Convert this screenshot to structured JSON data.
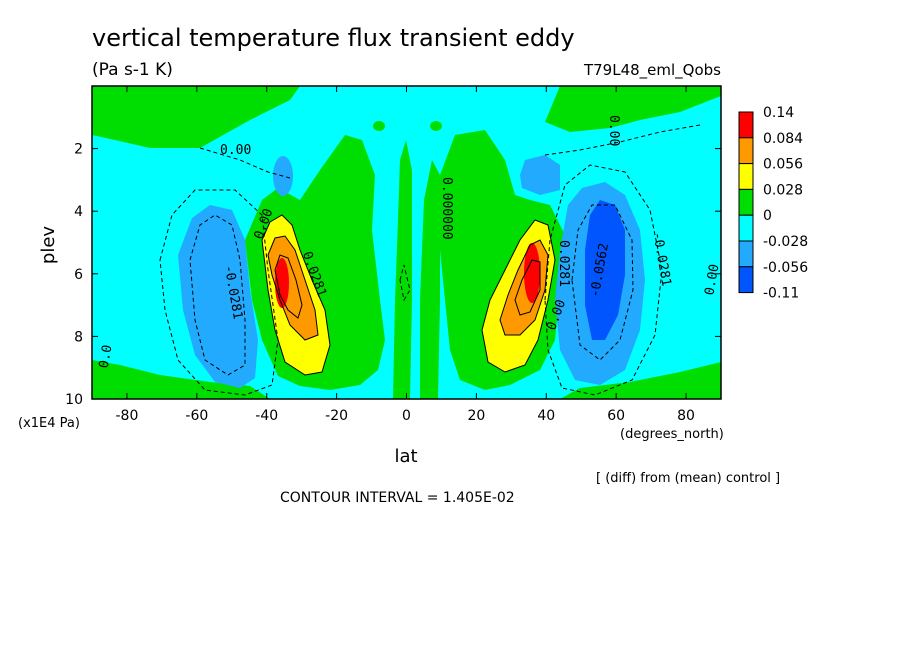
{
  "chart_data": {
    "type": "heatmap",
    "title": "vertical temperature flux transient eddy",
    "units": "(Pa s-1 K)",
    "run_label": "T79L48_eml_Qobs",
    "xlabel": "lat",
    "x_units": "(degrees_north)",
    "ylabel": "plev",
    "y_units": "(x1E4 Pa)",
    "xlim": [
      -90,
      90
    ],
    "ylim": [
      0,
      10
    ],
    "y_inverted": true,
    "x_ticks": [
      "-80",
      "-60",
      "-40",
      "-20",
      "0",
      "20",
      "40",
      "60",
      "80"
    ],
    "y_ticks": [
      "2",
      "4",
      "6",
      "8",
      "10"
    ],
    "note": "[ (diff) from (mean) control ]",
    "contour_interval": "CONTOUR INTERVAL = 1.405E-02",
    "colorbar": {
      "labels": [
        "0.14",
        "0.084",
        "0.056",
        "0.028",
        "0",
        "-0.028",
        "-0.056",
        "-0.11"
      ],
      "colors": [
        "#ff0000",
        "#ff9900",
        "#ffff00",
        "#00dd00",
        "#00ffff",
        "#22aaff",
        "#0055ff"
      ]
    },
    "contour_labels": [
      "0.00",
      "0.0281",
      "-0.0281",
      "-0.0562",
      "0.000000",
      "0.0"
    ],
    "features": [
      {
        "name": "SH positive core",
        "lat": -36,
        "plev": 6.3,
        "value": 0.14
      },
      {
        "name": "NH positive core",
        "lat": 36,
        "plev": 6.0,
        "value": 0.14
      },
      {
        "name": "SH negative lobe",
        "lat": -55,
        "plev": 6.0,
        "value": -0.056
      },
      {
        "name": "NH negative lobe",
        "lat": 54,
        "plev": 5.5,
        "value": -0.11
      }
    ]
  }
}
